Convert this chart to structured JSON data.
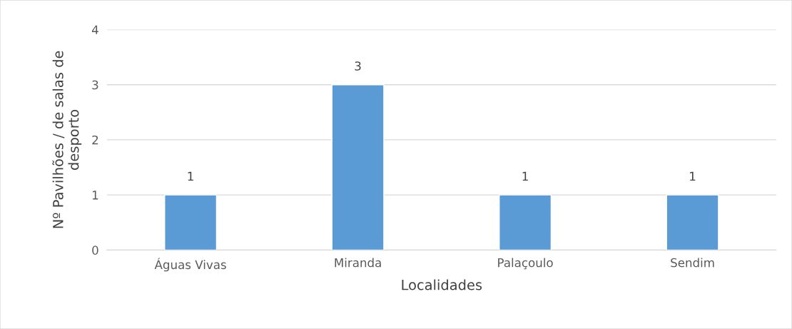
{
  "chart_data": {
    "type": "bar",
    "categories": [
      "Águas Vivas",
      "Miranda",
      "Palaçoulo",
      "Sendim"
    ],
    "values": [
      1,
      3,
      1,
      1
    ],
    "color": "#5b9bd5",
    "xlabel": "Localidades",
    "ylabel": "Nº Pavilhões / de salas de\ndesporto",
    "ylim": [
      0,
      4
    ],
    "yticks": [
      0,
      1,
      2,
      3,
      4
    ],
    "grid": "y",
    "data_labels": true,
    "legend": false
  }
}
